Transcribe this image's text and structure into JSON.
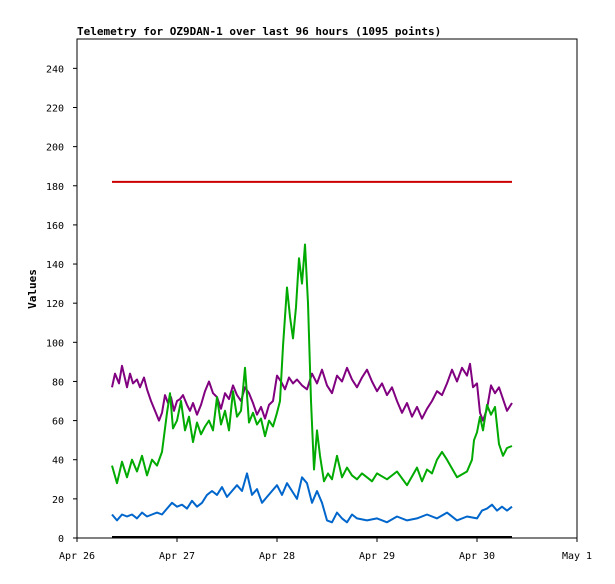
{
  "chart_data": {
    "type": "line",
    "title": "Telemetry for OZ9DAN-1 over last 96 hours (1095 points)",
    "xlabel": "",
    "ylabel": "Values",
    "ylim": [
      0,
      255
    ],
    "xlim": [
      0,
      5
    ],
    "yticks": [
      0,
      20,
      40,
      60,
      80,
      100,
      120,
      140,
      160,
      180,
      200,
      220,
      240
    ],
    "xticks": [
      0,
      1,
      2,
      3,
      4,
      5
    ],
    "xtick_labels": [
      "Apr 26",
      "Apr 27",
      "Apr 28",
      "Apr 29",
      "Apr 30",
      "May 1"
    ],
    "grid": false,
    "legend": "none",
    "series": [
      {
        "color": "#cc0000",
        "x": [
          0.35,
          4.35
        ],
        "y": [
          182,
          182
        ]
      },
      {
        "color": "#000000",
        "x": [
          0.35,
          4.35
        ],
        "y": [
          0.5,
          0.5
        ]
      },
      {
        "color": "#800080",
        "x": [
          0.35,
          0.38,
          0.42,
          0.45,
          0.5,
          0.53,
          0.56,
          0.6,
          0.63,
          0.67,
          0.7,
          0.74,
          0.78,
          0.82,
          0.85,
          0.88,
          0.91,
          0.94,
          0.97,
          1.0,
          1.03,
          1.06,
          1.1,
          1.13,
          1.16,
          1.2,
          1.24,
          1.28,
          1.32,
          1.36,
          1.4,
          1.44,
          1.48,
          1.52,
          1.56,
          1.6,
          1.64,
          1.68,
          1.72,
          1.76,
          1.8,
          1.84,
          1.88,
          1.92,
          1.96,
          2.0,
          2.04,
          2.08,
          2.12,
          2.16,
          2.2,
          2.25,
          2.3,
          2.35,
          2.4,
          2.45,
          2.5,
          2.55,
          2.6,
          2.65,
          2.7,
          2.75,
          2.8,
          2.85,
          2.9,
          2.95,
          3.0,
          3.05,
          3.1,
          3.15,
          3.2,
          3.25,
          3.3,
          3.35,
          3.4,
          3.45,
          3.5,
          3.55,
          3.6,
          3.65,
          3.7,
          3.75,
          3.8,
          3.85,
          3.9,
          3.93,
          3.96,
          4.0,
          4.03,
          4.06,
          4.1,
          4.14,
          4.18,
          4.22,
          4.26,
          4.3,
          4.35
        ],
        "y": [
          77,
          84,
          79,
          88,
          77,
          84,
          79,
          81,
          77,
          82,
          76,
          70,
          65,
          60,
          64,
          73,
          69,
          72,
          65,
          70,
          71,
          73,
          68,
          65,
          69,
          63,
          68,
          75,
          80,
          74,
          72,
          66,
          74,
          71,
          78,
          73,
          70,
          77,
          74,
          69,
          63,
          67,
          61,
          68,
          70,
          83,
          80,
          76,
          82,
          79,
          81,
          78,
          76,
          84,
          79,
          86,
          78,
          74,
          83,
          80,
          87,
          81,
          77,
          82,
          86,
          80,
          75,
          79,
          73,
          77,
          70,
          64,
          69,
          62,
          67,
          61,
          66,
          70,
          75,
          73,
          79,
          86,
          80,
          87,
          83,
          89,
          77,
          79,
          64,
          60,
          66,
          78,
          74,
          77,
          71,
          65,
          69
        ]
      },
      {
        "color": "#00aa00",
        "x": [
          0.35,
          0.4,
          0.45,
          0.5,
          0.55,
          0.6,
          0.65,
          0.7,
          0.75,
          0.8,
          0.85,
          0.9,
          0.93,
          0.96,
          1.0,
          1.04,
          1.08,
          1.12,
          1.16,
          1.2,
          1.24,
          1.28,
          1.32,
          1.36,
          1.4,
          1.44,
          1.48,
          1.52,
          1.56,
          1.6,
          1.64,
          1.68,
          1.72,
          1.76,
          1.8,
          1.84,
          1.88,
          1.92,
          1.96,
          2.0,
          2.03,
          2.06,
          2.1,
          2.13,
          2.16,
          2.19,
          2.22,
          2.25,
          2.28,
          2.31,
          2.34,
          2.37,
          2.4,
          2.43,
          2.47,
          2.51,
          2.55,
          2.6,
          2.65,
          2.7,
          2.75,
          2.8,
          2.85,
          2.9,
          2.95,
          3.0,
          3.1,
          3.2,
          3.3,
          3.4,
          3.45,
          3.5,
          3.55,
          3.6,
          3.65,
          3.7,
          3.8,
          3.9,
          3.95,
          3.97,
          4.0,
          4.03,
          4.06,
          4.1,
          4.14,
          4.18,
          4.22,
          4.26,
          4.3,
          4.35
        ],
        "y": [
          37,
          28,
          39,
          31,
          40,
          34,
          42,
          32,
          40,
          37,
          44,
          64,
          74,
          56,
          60,
          70,
          55,
          62,
          49,
          59,
          53,
          57,
          60,
          55,
          72,
          58,
          65,
          55,
          75,
          62,
          65,
          87,
          59,
          64,
          58,
          61,
          52,
          60,
          57,
          64,
          70,
          98,
          128,
          113,
          102,
          118,
          143,
          130,
          150,
          120,
          70,
          35,
          55,
          42,
          29,
          33,
          30,
          42,
          31,
          36,
          32,
          30,
          33,
          31,
          29,
          33,
          30,
          34,
          27,
          36,
          29,
          35,
          33,
          40,
          44,
          40,
          31,
          34,
          40,
          50,
          54,
          62,
          55,
          68,
          63,
          67,
          48,
          42,
          46,
          47
        ]
      },
      {
        "color": "#0066cc",
        "x": [
          0.35,
          0.4,
          0.45,
          0.5,
          0.55,
          0.6,
          0.65,
          0.7,
          0.75,
          0.8,
          0.85,
          0.9,
          0.95,
          1.0,
          1.05,
          1.1,
          1.15,
          1.2,
          1.25,
          1.3,
          1.35,
          1.4,
          1.45,
          1.5,
          1.55,
          1.6,
          1.65,
          1.7,
          1.75,
          1.8,
          1.85,
          1.9,
          1.95,
          2.0,
          2.05,
          2.1,
          2.15,
          2.2,
          2.25,
          2.3,
          2.35,
          2.4,
          2.45,
          2.5,
          2.55,
          2.6,
          2.65,
          2.7,
          2.75,
          2.8,
          2.9,
          3.0,
          3.1,
          3.2,
          3.3,
          3.4,
          3.5,
          3.6,
          3.7,
          3.8,
          3.9,
          4.0,
          4.05,
          4.1,
          4.15,
          4.2,
          4.25,
          4.3,
          4.35
        ],
        "y": [
          12,
          9,
          12,
          11,
          12,
          10,
          13,
          11,
          12,
          13,
          12,
          15,
          18,
          16,
          17,
          15,
          19,
          16,
          18,
          22,
          24,
          22,
          26,
          21,
          24,
          27,
          24,
          33,
          22,
          25,
          18,
          21,
          24,
          27,
          22,
          28,
          24,
          20,
          31,
          28,
          18,
          24,
          18,
          9,
          8,
          13,
          10,
          8,
          12,
          10,
          9,
          10,
          8,
          11,
          9,
          10,
          12,
          10,
          13,
          9,
          11,
          10,
          14,
          15,
          17,
          14,
          16,
          14,
          16
        ]
      }
    ]
  }
}
